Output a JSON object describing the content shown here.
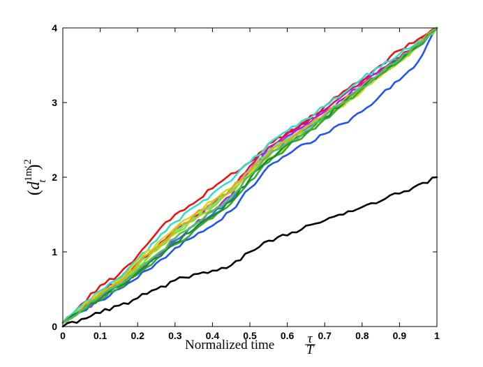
{
  "chart_data": {
    "type": "line",
    "xlabel": "Normalized time",
    "xlabel_fraction": {
      "numerator": "τ",
      "denominator": "T"
    },
    "ylabel": {
      "open": "(",
      "base": "d",
      "sub": "t",
      "sup": "1m′",
      "close": ")",
      "power": "2"
    },
    "xlim": [
      0,
      1
    ],
    "ylim": [
      0,
      4
    ],
    "xticks": [
      "0",
      "0.1",
      "0.2",
      "0.3",
      "0.4",
      "0.5",
      "0.6",
      "0.7",
      "0.8",
      "0.9",
      "1"
    ],
    "yticks": [
      "0",
      "1",
      "2",
      "3",
      "4"
    ],
    "grid": false,
    "x": [
      0,
      0.05,
      0.1,
      0.15,
      0.2,
      0.25,
      0.3,
      0.35,
      0.4,
      0.45,
      0.5,
      0.55,
      0.6,
      0.65,
      0.7,
      0.75,
      0.8,
      0.85,
      0.9,
      0.95,
      1.0
    ],
    "series": [
      {
        "color": "#ee1111",
        "values": [
          0.05,
          0.3,
          0.55,
          0.7,
          0.95,
          1.25,
          1.5,
          1.65,
          1.85,
          2.05,
          2.2,
          2.45,
          2.6,
          2.75,
          2.95,
          3.15,
          3.3,
          3.5,
          3.7,
          3.85,
          4.0
        ]
      },
      {
        "color": "#dd1166",
        "values": [
          0.05,
          0.25,
          0.45,
          0.62,
          0.85,
          1.05,
          1.3,
          1.45,
          1.65,
          1.85,
          2.15,
          2.4,
          2.58,
          2.72,
          2.9,
          3.1,
          3.28,
          3.45,
          3.6,
          3.8,
          4.0
        ]
      },
      {
        "color": "#aa22ee",
        "values": [
          0.05,
          0.2,
          0.38,
          0.55,
          0.72,
          0.95,
          1.15,
          1.35,
          1.55,
          1.75,
          2.1,
          2.35,
          2.55,
          2.7,
          2.88,
          3.05,
          3.25,
          3.42,
          3.58,
          3.78,
          4.0
        ]
      },
      {
        "color": "#2255ee",
        "values": [
          0.05,
          0.2,
          0.35,
          0.5,
          0.65,
          0.85,
          1.05,
          1.2,
          1.35,
          1.55,
          1.85,
          2.15,
          2.3,
          2.45,
          2.58,
          2.72,
          2.88,
          3.1,
          3.3,
          3.55,
          4.0
        ]
      },
      {
        "color": "#3377dd",
        "values": [
          0.05,
          0.22,
          0.4,
          0.55,
          0.75,
          0.95,
          1.15,
          1.35,
          1.5,
          1.7,
          2.05,
          2.3,
          2.5,
          2.65,
          2.82,
          3.0,
          3.2,
          3.38,
          3.55,
          3.75,
          4.0
        ]
      },
      {
        "color": "#33ddcc",
        "values": [
          0.05,
          0.28,
          0.48,
          0.65,
          0.9,
          1.15,
          1.4,
          1.6,
          1.78,
          1.95,
          2.2,
          2.45,
          2.62,
          2.78,
          2.95,
          3.12,
          3.32,
          3.48,
          3.65,
          3.82,
          4.0
        ]
      },
      {
        "color": "#55eeaa",
        "values": [
          0.05,
          0.25,
          0.45,
          0.6,
          0.82,
          1.05,
          1.28,
          1.45,
          1.62,
          1.82,
          2.1,
          2.35,
          2.52,
          2.68,
          2.85,
          3.02,
          3.22,
          3.4,
          3.58,
          3.78,
          4.0
        ]
      },
      {
        "color": "#99dd11",
        "values": [
          0.05,
          0.22,
          0.42,
          0.58,
          0.8,
          1.02,
          1.25,
          1.42,
          1.6,
          1.8,
          2.05,
          2.3,
          2.48,
          2.62,
          2.8,
          2.98,
          3.18,
          3.38,
          3.55,
          3.75,
          4.0
        ]
      },
      {
        "color": "#ccdd22",
        "values": [
          0.05,
          0.24,
          0.45,
          0.62,
          0.88,
          1.1,
          1.32,
          1.5,
          1.68,
          1.85,
          2.05,
          2.25,
          2.42,
          2.6,
          2.78,
          2.95,
          3.15,
          3.35,
          3.55,
          3.78,
          4.0
        ]
      },
      {
        "color": "#ddaa22",
        "values": [
          0.05,
          0.23,
          0.44,
          0.6,
          0.84,
          1.06,
          1.3,
          1.48,
          1.66,
          1.84,
          2.08,
          2.32,
          2.5,
          2.66,
          2.84,
          3.02,
          3.22,
          3.4,
          3.58,
          3.78,
          4.0
        ]
      },
      {
        "color": "#33aa33",
        "values": [
          0.05,
          0.2,
          0.36,
          0.52,
          0.7,
          0.9,
          1.1,
          1.28,
          1.45,
          1.65,
          1.95,
          2.2,
          2.4,
          2.58,
          2.78,
          2.98,
          3.18,
          3.38,
          3.55,
          3.75,
          4.0
        ]
      },
      {
        "color": "#228833",
        "values": [
          0.05,
          0.21,
          0.38,
          0.54,
          0.72,
          0.92,
          1.12,
          1.3,
          1.48,
          1.68,
          1.98,
          2.24,
          2.44,
          2.6,
          2.8,
          3.0,
          3.2,
          3.4,
          3.58,
          3.78,
          4.0
        ]
      },
      {
        "color": "#55bb66",
        "values": [
          0.05,
          0.22,
          0.4,
          0.56,
          0.76,
          0.96,
          1.18,
          1.36,
          1.54,
          1.74,
          2.02,
          2.28,
          2.46,
          2.62,
          2.82,
          3.0,
          3.2,
          3.4,
          3.58,
          3.78,
          4.0
        ]
      },
      {
        "color": "#000000",
        "values": [
          0.0,
          0.1,
          0.18,
          0.28,
          0.38,
          0.5,
          0.62,
          0.7,
          0.75,
          0.82,
          1.0,
          1.15,
          1.22,
          1.35,
          1.42,
          1.5,
          1.6,
          1.68,
          1.78,
          1.9,
          2.0
        ]
      }
    ]
  }
}
